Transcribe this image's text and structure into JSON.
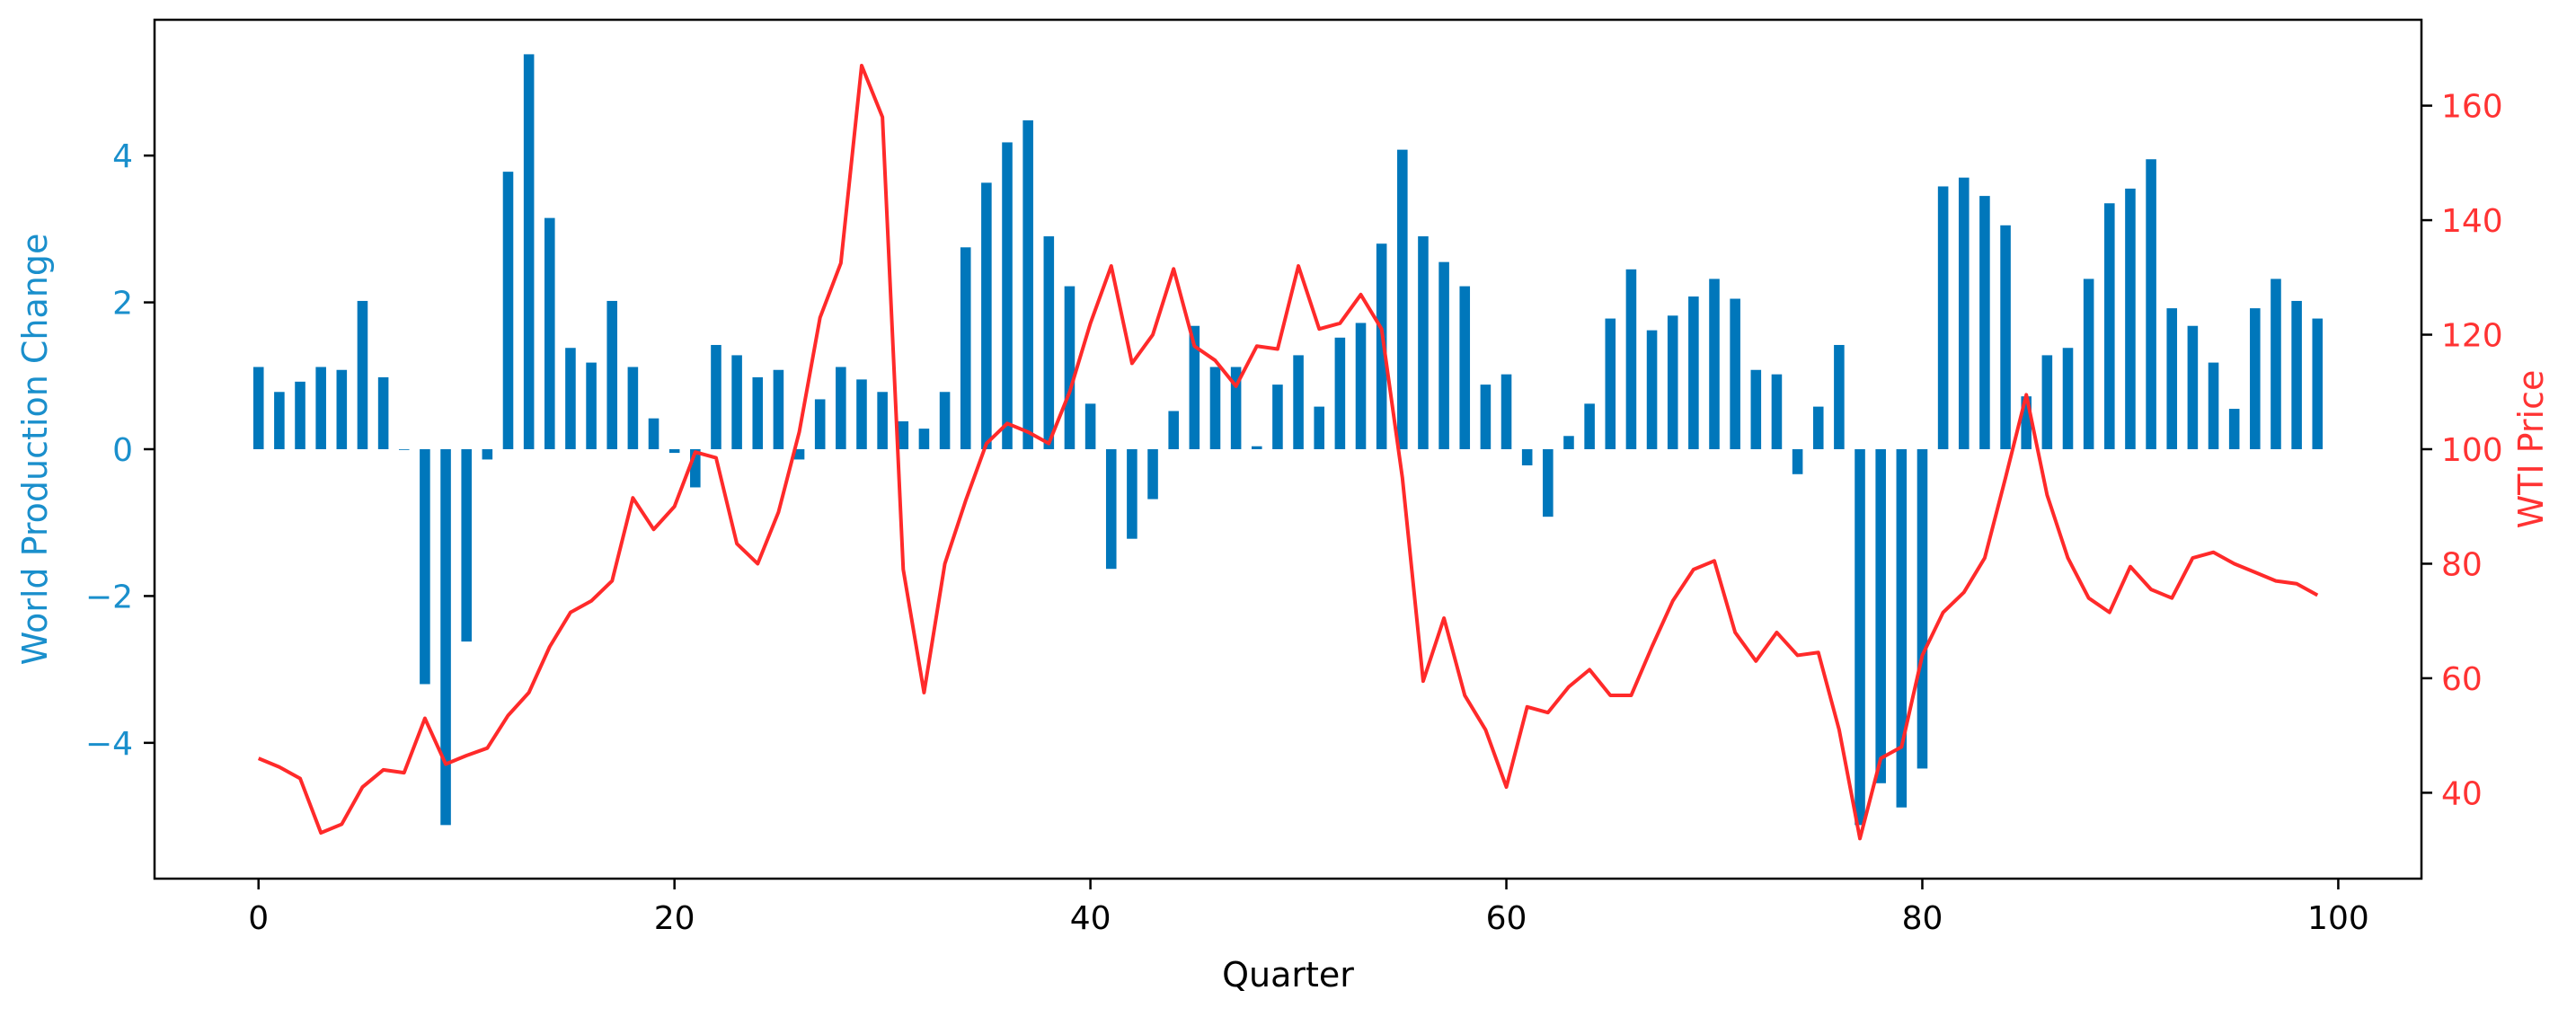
{
  "chart_data": {
    "type": "bar",
    "title": "",
    "xlabel": "Quarter",
    "ylabel_left": "World Production Change",
    "ylabel_right": "WTI Price",
    "xlim": [
      -5,
      104
    ],
    "ylim_left": [
      -5.85,
      5.85
    ],
    "ylim_right": [
      25.0,
      175.0
    ],
    "xticks": [
      0,
      20,
      40,
      60,
      80,
      100
    ],
    "yticks_left": [
      -4,
      -2,
      0,
      2,
      4
    ],
    "yticks_right": [
      40,
      60,
      80,
      100,
      120,
      140,
      160
    ],
    "grid": false,
    "colors": {
      "bars": "#0077bb",
      "line": "#ff2a2a",
      "left_axis_text": "#1a8fcc",
      "right_axis_text": "#ff3333",
      "frame": "#000000"
    },
    "series": [
      {
        "type": "bar",
        "axis": "left",
        "x": [
          0,
          1,
          2,
          3,
          4,
          5,
          6,
          7,
          8,
          9,
          10,
          11,
          12,
          13,
          14,
          15,
          16,
          17,
          18,
          19,
          20,
          21,
          22,
          23,
          24,
          25,
          26,
          27,
          28,
          29,
          30,
          31,
          32,
          33,
          34,
          35,
          36,
          37,
          38,
          39,
          40,
          41,
          42,
          43,
          44,
          45,
          46,
          47,
          48,
          49,
          50,
          51,
          52,
          53,
          54,
          55,
          56,
          57,
          58,
          59,
          60,
          61,
          62,
          63,
          64,
          65,
          66,
          67,
          68,
          69,
          70,
          71,
          72,
          73,
          74,
          75,
          76,
          77,
          78,
          79,
          80,
          81,
          82,
          83,
          84,
          85,
          86,
          87,
          88,
          89,
          90,
          91,
          92,
          93,
          94,
          95,
          96,
          97,
          98,
          99
        ],
        "values": [
          1.12,
          0.78,
          0.92,
          1.12,
          1.08,
          2.02,
          0.98,
          0,
          -3.2,
          -5.12,
          -2.62,
          -0.14,
          3.78,
          5.38,
          3.15,
          1.38,
          1.18,
          2.02,
          1.12,
          0.42,
          -0.05,
          -0.52,
          1.42,
          1.28,
          0.98,
          1.08,
          -0.14,
          0.68,
          1.12,
          0.95,
          0.78,
          0.38,
          0.28,
          0.78,
          2.75,
          3.63,
          4.18,
          4.48,
          2.9,
          2.22,
          0.62,
          -1.63,
          -1.22,
          -0.68,
          0.52,
          1.68,
          1.12,
          1.12,
          0.04,
          0.88,
          1.28,
          0.58,
          1.52,
          1.72,
          2.8,
          4.08,
          2.9,
          2.55,
          2.22,
          0.88,
          1.02,
          -0.22,
          -0.92,
          0.18,
          0.62,
          1.78,
          2.45,
          1.62,
          1.82,
          2.08,
          2.32,
          2.05,
          1.08,
          1.02,
          -0.34,
          0.58,
          1.42,
          -5.12,
          -4.55,
          -4.88,
          -4.35,
          3.58,
          3.7,
          3.45,
          3.05,
          0.72,
          1.28,
          1.38,
          2.32,
          3.35,
          3.55,
          3.95,
          1.92,
          1.68,
          1.18,
          0.55,
          1.92,
          2.32,
          2.02,
          1.78
        ]
      },
      {
        "type": "line",
        "axis": "right",
        "x": [
          0,
          1,
          2,
          3,
          4,
          5,
          6,
          7,
          8,
          9,
          10,
          11,
          12,
          13,
          14,
          15,
          16,
          17,
          18,
          19,
          20,
          21,
          22,
          23,
          24,
          25,
          26,
          27,
          28,
          29,
          30,
          31,
          32,
          33,
          34,
          35,
          36,
          37,
          38,
          39,
          40,
          41,
          42,
          43,
          44,
          45,
          46,
          47,
          48,
          49,
          50,
          51,
          52,
          53,
          54,
          55,
          56,
          57,
          58,
          59,
          60,
          61,
          62,
          63,
          64,
          65,
          66,
          67,
          68,
          69,
          70,
          71,
          72,
          73,
          74,
          75,
          76,
          77,
          78,
          79,
          80,
          81,
          82,
          83,
          84,
          85,
          86,
          87,
          88,
          89,
          90,
          91,
          92,
          93,
          94,
          95,
          96,
          97,
          98,
          99
        ],
        "values": [
          46,
          44.5,
          42.5,
          33,
          34.5,
          41,
          44,
          43.5,
          53,
          45,
          46.5,
          47.8,
          53.5,
          57.5,
          65.5,
          71.5,
          73.5,
          77,
          91.5,
          86,
          90,
          99.5,
          98.5,
          83.5,
          80,
          89,
          103,
          123,
          132.5,
          167,
          158,
          79,
          57.5,
          80,
          91,
          101,
          104.5,
          103,
          101,
          110,
          122,
          132,
          115,
          120,
          131.5,
          118,
          115.5,
          111,
          118,
          117.5,
          132,
          121,
          122,
          127,
          121,
          95,
          59.5,
          70.5,
          57,
          51,
          41,
          55,
          54,
          58.5,
          61.5,
          57,
          57,
          65.5,
          73.5,
          79,
          80.5,
          68,
          63,
          68,
          64,
          64.5,
          51,
          32,
          46,
          48,
          64,
          71.5,
          75,
          81,
          95,
          109.5,
          92,
          81,
          74,
          71.5,
          79.5,
          75.5,
          74,
          81,
          82,
          80,
          78.5,
          77,
          76.5,
          74.5
        ]
      }
    ]
  }
}
